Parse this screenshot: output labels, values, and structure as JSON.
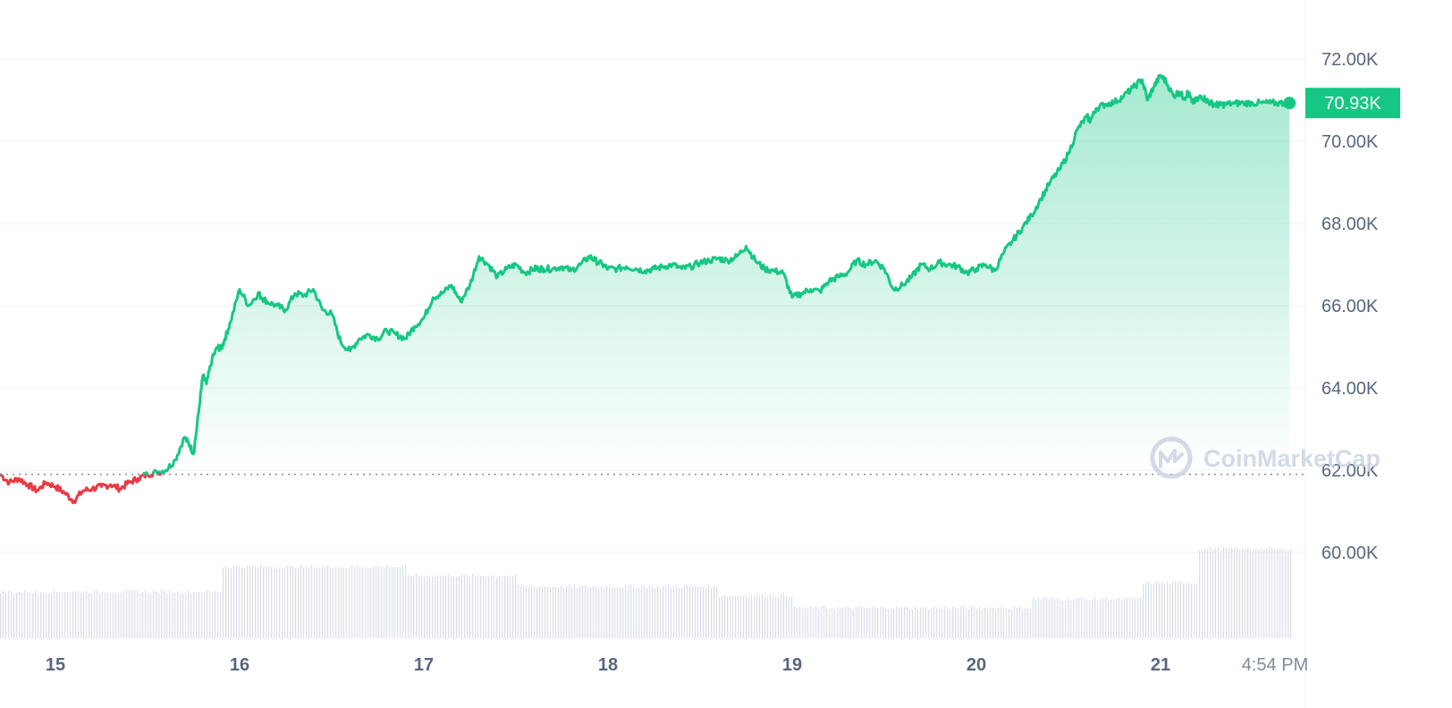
{
  "chart_data": {
    "type": "area",
    "x_tick_labels": [
      "15",
      "16",
      "17",
      "18",
      "19",
      "20",
      "21",
      "4:54 PM"
    ],
    "y_tick_labels": [
      "72.00K",
      "70.00K",
      "68.00K",
      "66.00K",
      "64.00K",
      "62.00K",
      "60.00K"
    ],
    "y_ticks": [
      72000,
      70000,
      68000,
      66000,
      64000,
      62000,
      60000
    ],
    "ylim": [
      59000,
      73000
    ],
    "xlim": [
      14.7,
      21.72
    ],
    "reference_price": 61900,
    "current_price_label": "70.93K",
    "current_price": 70930,
    "grid": true,
    "price_series": {
      "x": [
        14.7,
        14.75,
        14.8,
        14.85,
        14.9,
        14.95,
        15.0,
        15.05,
        15.1,
        15.15,
        15.2,
        15.25,
        15.3,
        15.35,
        15.4,
        15.45,
        15.5,
        15.55,
        15.6,
        15.65,
        15.7,
        15.73,
        15.75,
        15.78,
        15.8,
        15.82,
        15.85,
        15.88,
        15.9,
        15.92,
        15.95,
        16.0,
        16.05,
        16.1,
        16.12,
        16.15,
        16.2,
        16.25,
        16.3,
        16.35,
        16.4,
        16.45,
        16.5,
        16.55,
        16.6,
        16.65,
        16.7,
        16.75,
        16.8,
        16.85,
        16.9,
        16.95,
        17.0,
        17.05,
        17.1,
        17.15,
        17.2,
        17.25,
        17.3,
        17.35,
        17.4,
        17.45,
        17.5,
        17.55,
        17.6,
        17.62,
        17.65,
        17.7,
        17.75,
        17.8,
        17.85,
        17.9,
        17.93,
        17.97,
        18.0,
        18.05,
        18.1,
        18.15,
        18.2,
        18.25,
        18.3,
        18.35,
        18.4,
        18.45,
        18.5,
        18.55,
        18.6,
        18.65,
        18.7,
        18.75,
        18.8,
        18.85,
        18.9,
        18.95,
        19.0,
        19.05,
        19.1,
        19.15,
        19.2,
        19.25,
        19.3,
        19.35,
        19.4,
        19.45,
        19.5,
        19.55,
        19.6,
        19.65,
        19.7,
        19.75,
        19.8,
        19.85,
        19.9,
        19.95,
        20.0,
        20.05,
        20.1,
        20.15,
        20.2,
        20.25,
        20.3,
        20.35,
        20.4,
        20.45,
        20.5,
        20.55,
        20.6,
        20.62,
        20.65,
        20.7,
        20.75,
        20.8,
        20.85,
        20.9,
        20.93,
        20.96,
        21.0,
        21.03,
        21.07,
        21.1,
        21.13,
        21.15,
        21.17,
        21.2,
        21.22,
        21.25,
        21.27,
        21.3,
        21.32,
        21.35,
        21.4,
        21.45,
        21.5,
        21.55,
        21.6,
        21.65,
        21.7
      ],
      "y": [
        61900,
        61700,
        61800,
        61650,
        61500,
        61700,
        61600,
        61450,
        61250,
        61500,
        61550,
        61600,
        61650,
        61550,
        61700,
        61800,
        61900,
        61950,
        62000,
        62250,
        62800,
        62600,
        62400,
        63500,
        64300,
        64100,
        64700,
        65000,
        64950,
        65200,
        65600,
        66400,
        66000,
        66300,
        66200,
        66100,
        66000,
        65900,
        66300,
        66250,
        66400,
        65900,
        65800,
        65100,
        64900,
        65200,
        65300,
        65200,
        65400,
        65300,
        65200,
        65500,
        65700,
        66200,
        66300,
        66500,
        66100,
        66500,
        67200,
        67000,
        66700,
        66900,
        67000,
        66800,
        66900,
        66900,
        66900,
        66900,
        66950,
        66850,
        67000,
        67200,
        67100,
        67000,
        66900,
        66900,
        66950,
        66900,
        66850,
        66900,
        66950,
        67000,
        66900,
        66950,
        67050,
        67100,
        67150,
        67100,
        67200,
        67450,
        67100,
        66900,
        66850,
        66800,
        66200,
        66300,
        66400,
        66350,
        66600,
        66700,
        66800,
        67100,
        67000,
        67100,
        66900,
        66400,
        66500,
        66700,
        67000,
        66900,
        67050,
        67000,
        66950,
        66800,
        66900,
        67000,
        66850,
        67300,
        67600,
        67900,
        68200,
        68600,
        69000,
        69300,
        69700,
        70300,
        70600,
        70500,
        70800,
        70900,
        70950,
        71100,
        71300,
        71500,
        71000,
        71300,
        71600,
        71450,
        71100,
        71200,
        71050,
        71200,
        70950,
        71000,
        71100,
        71000,
        70930,
        70900,
        70880,
        70900,
        70920,
        70930,
        70930,
        70930,
        70930,
        70930,
        70930
      ]
    }
  },
  "watermark": {
    "text": "CoinMarketCap"
  },
  "colors": {
    "up": "#16c784",
    "down": "#ea3943",
    "grid": "#eff2f5",
    "axis_text": "#58667e",
    "volume": "#cfd6e4"
  }
}
